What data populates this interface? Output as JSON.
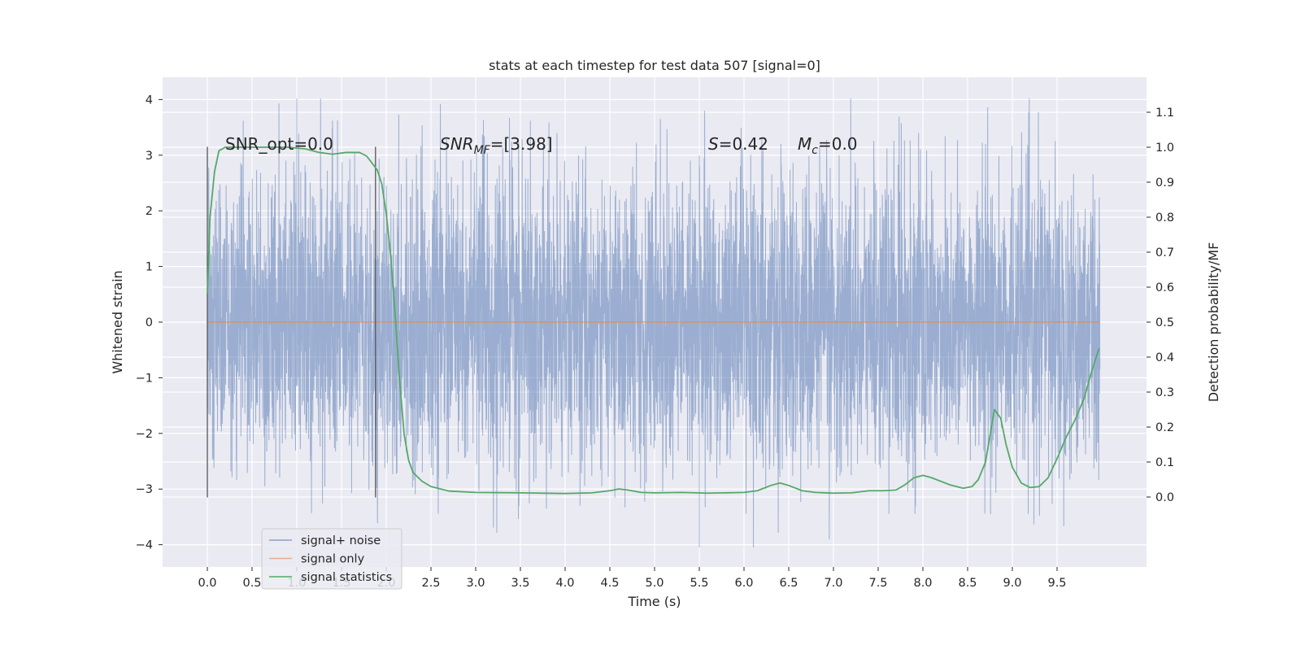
{
  "chart_data": {
    "type": "line",
    "title": "stats at each timestep for test data 507 [signal=0]",
    "xlabel": "Time (s)",
    "ylabel_left": "Whitened strain",
    "ylabel_right": "Detection probability/MF",
    "xlim": [
      -0.5,
      10.5
    ],
    "ylim_left": [
      -4.4,
      4.4
    ],
    "ylim_right": [
      -0.2,
      1.2
    ],
    "x_ticks": [
      0.0,
      0.5,
      1.0,
      1.5,
      2.0,
      2.5,
      3.0,
      3.5,
      4.0,
      4.5,
      5.0,
      5.5,
      6.0,
      6.5,
      7.0,
      7.5,
      8.0,
      8.5,
      9.0,
      9.5
    ],
    "x_tick_labels": [
      "0.0",
      "0.5",
      "1.0",
      "1.5",
      "2.0",
      "2.5",
      "3.0",
      "3.5",
      "4.0",
      "4.5",
      "5.0",
      "5.5",
      "6.0",
      "6.5",
      "7.0",
      "7.5",
      "8.0",
      "8.5",
      "9.0",
      "9.5"
    ],
    "y_left_ticks": [
      4,
      3,
      2,
      1,
      0,
      -1,
      -2,
      -3,
      -4
    ],
    "y_left_tick_labels": [
      "4",
      "3",
      "2",
      "1",
      "0",
      "−1",
      "−2",
      "−3",
      "−4"
    ],
    "y_right_ticks": [
      1.1,
      1.0,
      0.9,
      0.8,
      0.7,
      0.6,
      0.5,
      0.4,
      0.3,
      0.2,
      0.1,
      0.0
    ],
    "y_right_tick_labels": [
      "1.1",
      "1.0",
      "0.9",
      "0.8",
      "0.7",
      "0.6",
      "0.5",
      "0.4",
      "0.3",
      "0.2",
      "0.1",
      "0.0"
    ],
    "grid": true,
    "legend_placement": "lower-left",
    "annotations": [
      {
        "text": "SNR_opt=0.0",
        "x": 0.2,
        "y": 3.1
      },
      {
        "text_main": "SNR",
        "text_sub": "MF",
        "text_rest": "=[3.98]",
        "x": 2.6,
        "y": 3.1
      },
      {
        "text_main": "S",
        "text_rest": "=0.42",
        "x": 5.6,
        "y": 3.1
      },
      {
        "text_main": "M",
        "text_sub": "c",
        "text_rest": "=0.0",
        "x": 6.6,
        "y": 3.1
      }
    ],
    "vlines": [
      {
        "x": 0.0,
        "ymin": -3.15,
        "ymax": 3.15
      },
      {
        "x": 1.88,
        "ymin": -3.15,
        "ymax": 3.15
      }
    ],
    "series": [
      {
        "name": "signal+ noise",
        "kind": "noise",
        "color": "#4c72b0",
        "x_range": [
          0.0,
          9.98
        ],
        "typical_amplitude": 1.3,
        "peak_max": 4.02,
        "peak_min": -4.05
      },
      {
        "name": "signal only",
        "kind": "constant",
        "color": "#dd8452",
        "y": 0,
        "x_range": [
          0.0,
          9.98
        ]
      },
      {
        "name": "signal statistics",
        "kind": "line",
        "axis": "right",
        "color": "#55a868",
        "x": [
          0.0,
          0.03,
          0.08,
          0.13,
          0.2,
          0.35,
          0.6,
          0.9,
          1.1,
          1.25,
          1.4,
          1.55,
          1.7,
          1.78,
          1.84,
          1.9,
          1.95,
          2.0,
          2.05,
          2.1,
          2.15,
          2.2,
          2.25,
          2.3,
          2.4,
          2.5,
          2.7,
          3.0,
          3.5,
          4.0,
          4.3,
          4.5,
          4.6,
          4.7,
          4.85,
          5.0,
          5.3,
          5.6,
          6.0,
          6.15,
          6.3,
          6.4,
          6.5,
          6.65,
          6.8,
          7.0,
          7.2,
          7.4,
          7.55,
          7.7,
          7.8,
          7.9,
          8.0,
          8.1,
          8.3,
          8.45,
          8.55,
          8.62,
          8.7,
          8.8,
          8.87,
          8.93,
          9.0,
          9.1,
          9.2,
          9.3,
          9.4,
          9.5,
          9.6,
          9.7,
          9.8,
          9.9,
          9.97
        ],
        "y": [
          0.58,
          0.8,
          0.93,
          0.99,
          1.0,
          1.0,
          1.0,
          1.0,
          0.995,
          0.985,
          0.98,
          0.985,
          0.985,
          0.975,
          0.955,
          0.935,
          0.895,
          0.81,
          0.69,
          0.52,
          0.33,
          0.18,
          0.105,
          0.07,
          0.045,
          0.03,
          0.017,
          0.013,
          0.012,
          0.01,
          0.012,
          0.018,
          0.023,
          0.02,
          0.013,
          0.012,
          0.013,
          0.011,
          0.013,
          0.018,
          0.033,
          0.04,
          0.033,
          0.018,
          0.013,
          0.011,
          0.012,
          0.018,
          0.018,
          0.02,
          0.035,
          0.055,
          0.062,
          0.055,
          0.035,
          0.025,
          0.03,
          0.05,
          0.1,
          0.25,
          0.225,
          0.15,
          0.085,
          0.04,
          0.027,
          0.03,
          0.055,
          0.11,
          0.17,
          0.22,
          0.28,
          0.37,
          0.425
        ]
      }
    ]
  }
}
